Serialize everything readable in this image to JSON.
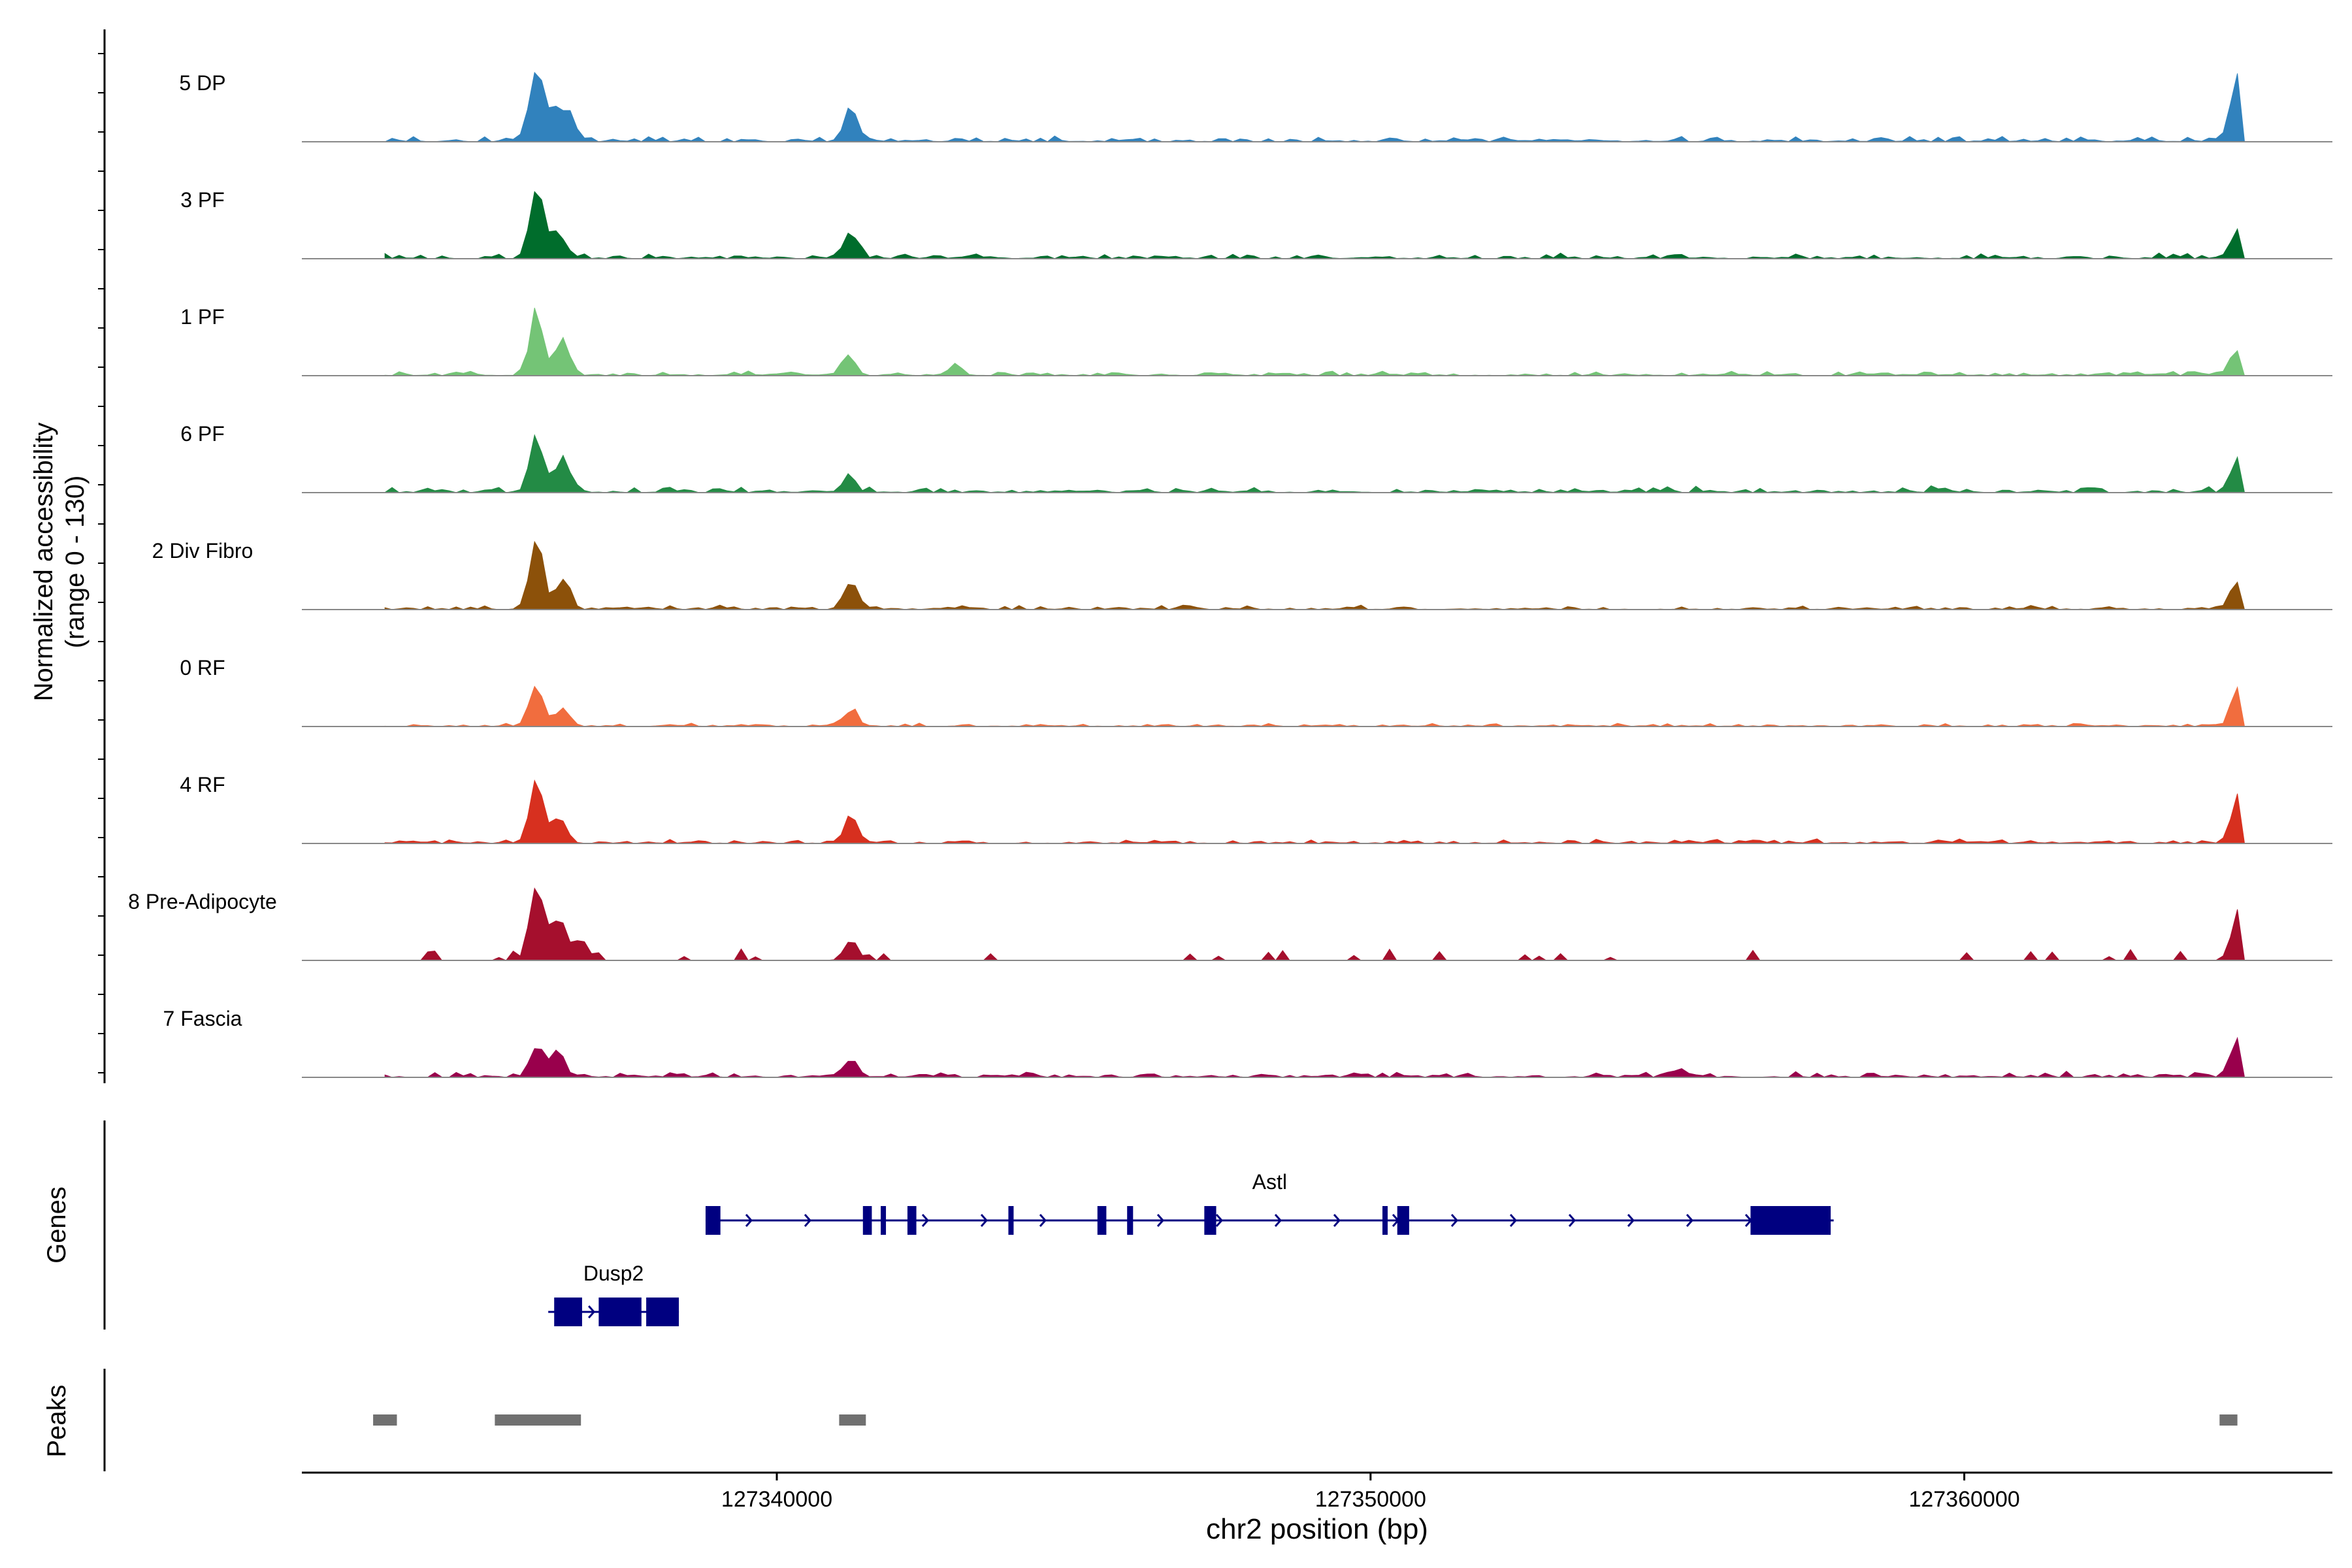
{
  "chart_data": {
    "type": "area",
    "chromosome": "chr2",
    "xlim": [
      127332000,
      127366200
    ],
    "xlabel": "chr2 position (bp)",
    "xticks": [
      127340000,
      127350000,
      127360000
    ],
    "xtick_labels": [
      "127340000",
      "127350000",
      "127360000"
    ],
    "coverage": {
      "ylabel_line1": "Normalized accessibility",
      "ylabel_line2": "(range 0 - 130)",
      "ylim": [
        0,
        130
      ],
      "tracks": [
        {
          "name": "5 DP",
          "color": "#3182bd",
          "noise": 5,
          "sparse": false,
          "peaks": [
            [
              127335950,
              100
            ],
            [
              127336250,
              45
            ],
            [
              127336500,
              38
            ],
            [
              127341250,
              45
            ],
            [
              127364600,
              100
            ]
          ]
        },
        {
          "name": "3 PF",
          "color": "#006d2c",
          "noise": 5,
          "sparse": false,
          "peaks": [
            [
              127335950,
              105
            ],
            [
              127336300,
              40
            ],
            [
              127341250,
              35
            ],
            [
              127364600,
              45
            ]
          ]
        },
        {
          "name": "1 PF",
          "color": "#74c476",
          "noise": 4,
          "sparse": false,
          "peaks": [
            [
              127335950,
              95
            ],
            [
              127336400,
              55
            ],
            [
              127341200,
              30
            ],
            [
              127343000,
              15
            ],
            [
              127364600,
              40
            ]
          ]
        },
        {
          "name": "6 PF",
          "color": "#238b45",
          "noise": 6,
          "sparse": false,
          "peaks": [
            [
              127335950,
              85
            ],
            [
              127336400,
              50
            ],
            [
              127341200,
              22
            ],
            [
              127364600,
              48
            ]
          ]
        },
        {
          "name": "2 Div Fibro",
          "color": "#8c510a",
          "noise": 4,
          "sparse": false,
          "peaks": [
            [
              127335950,
              110
            ],
            [
              127336400,
              45
            ],
            [
              127341250,
              35
            ],
            [
              127364600,
              42
            ]
          ]
        },
        {
          "name": "0 RF",
          "color": "#f16d3e",
          "noise": 3,
          "sparse": false,
          "peaks": [
            [
              127335950,
              65
            ],
            [
              127336400,
              28
            ],
            [
              127341250,
              25
            ],
            [
              127364600,
              52
            ]
          ]
        },
        {
          "name": "4 RF",
          "color": "#d7301f",
          "noise": 4,
          "sparse": false,
          "peaks": [
            [
              127335950,
              95
            ],
            [
              127336350,
              40
            ],
            [
              127341250,
              42
            ],
            [
              127364600,
              62
            ]
          ]
        },
        {
          "name": "8 Pre-Adipocyte",
          "color": "#a50f2d",
          "noise": 12,
          "sparse": true,
          "peaks": [
            [
              127335950,
              120
            ],
            [
              127336300,
              60
            ],
            [
              127336700,
              35
            ],
            [
              127341250,
              30
            ],
            [
              127364600,
              60
            ]
          ]
        },
        {
          "name": "7 Fascia",
          "color": "#99004c",
          "noise": 5,
          "sparse": false,
          "peaks": [
            [
              127335950,
              45
            ],
            [
              127336300,
              38
            ],
            [
              127341250,
              28
            ],
            [
              127355200,
              12
            ],
            [
              127364600,
              50
            ]
          ]
        }
      ]
    },
    "genes": {
      "label": "Genes",
      "items": [
        {
          "name": "Astl",
          "start": 127338800,
          "end": 127357800,
          "row": 0,
          "color": "#000080",
          "exons": [
            [
              127338800,
              127339050
            ],
            [
              127341450,
              127341600
            ],
            [
              127341750,
              127341800
            ],
            [
              127342200,
              127342350
            ],
            [
              127343900,
              127343950
            ],
            [
              127345400,
              127345550
            ],
            [
              127345900,
              127346000
            ],
            [
              127347200,
              127347400
            ],
            [
              127350200,
              127350250
            ],
            [
              127350450,
              127350650
            ],
            [
              127356400,
              127357750
            ]
          ]
        },
        {
          "name": "Dusp2",
          "start": 127336150,
          "end": 127338350,
          "row": 1,
          "color": "#000080",
          "exons": [
            [
              127336250,
              127336720
            ],
            [
              127337000,
              127337720
            ],
            [
              127337800,
              127338350
            ]
          ]
        }
      ]
    },
    "peaks": {
      "label": "Peaks",
      "color": "#707070",
      "regions": [
        [
          127333200,
          127333600
        ],
        [
          127335250,
          127336700
        ],
        [
          127341050,
          127341500
        ],
        [
          127364300,
          127364600
        ]
      ]
    }
  }
}
